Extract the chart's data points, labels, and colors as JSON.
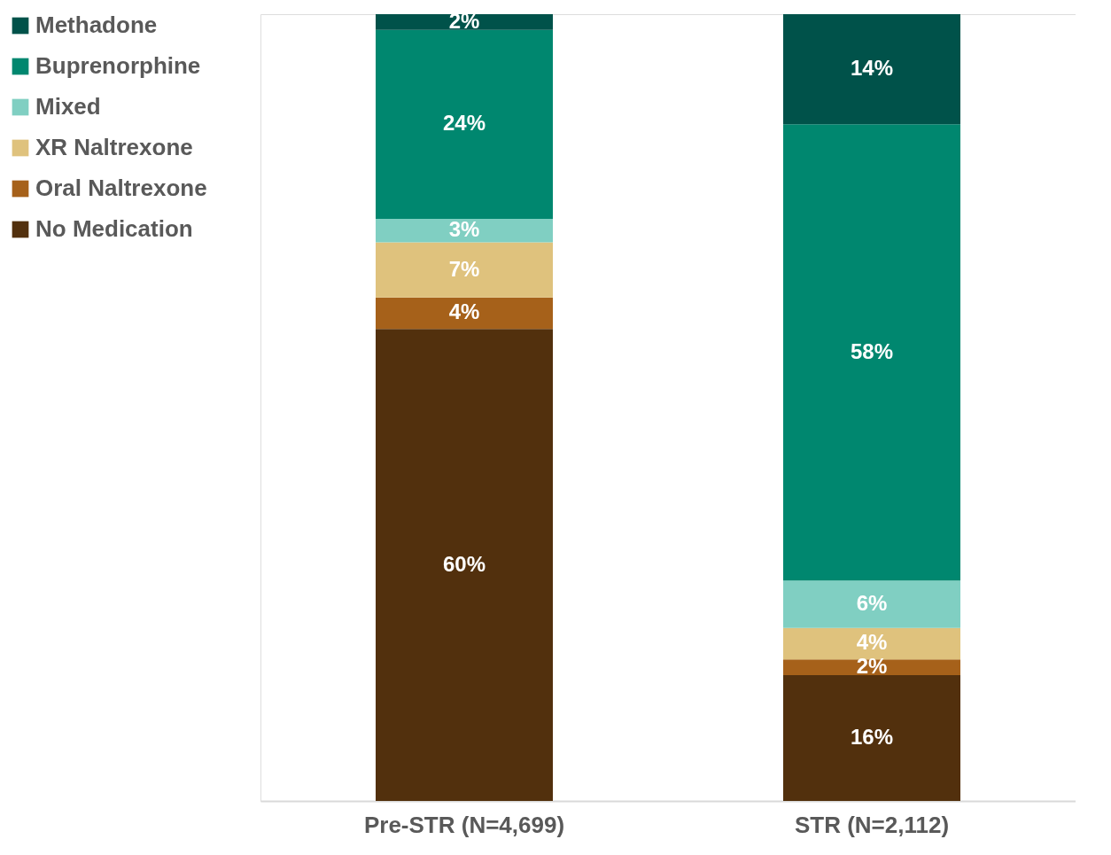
{
  "chart_data": {
    "type": "bar",
    "stacked": true,
    "legend": "left",
    "categories": [
      "Pre-STR (N=4,699)",
      "STR (N=2,112)"
    ],
    "series": [
      {
        "name": "No Medication",
        "color": "#52300d",
        "values": [
          60,
          16
        ],
        "value_labels": [
          "60%",
          "16%"
        ]
      },
      {
        "name": "Oral Naltrexone",
        "color": "#a6611a",
        "values": [
          4,
          2
        ],
        "value_labels": [
          "4%",
          "2%"
        ]
      },
      {
        "name": "XR Naltrexone",
        "color": "#dfc27d",
        "values": [
          7,
          4
        ],
        "value_labels": [
          "7%",
          "4%"
        ]
      },
      {
        "name": "Mixed",
        "color": "#80cfc2",
        "values": [
          3,
          6
        ],
        "value_labels": [
          "3%",
          "6%"
        ]
      },
      {
        "name": "Buprenorphine",
        "color": "#00876f",
        "values": [
          24,
          58
        ],
        "value_labels": [
          "24%",
          "58%"
        ]
      },
      {
        "name": "Methadone",
        "color": "#00524a",
        "values": [
          2,
          14
        ],
        "value_labels": [
          "2%",
          "14%"
        ]
      }
    ]
  }
}
